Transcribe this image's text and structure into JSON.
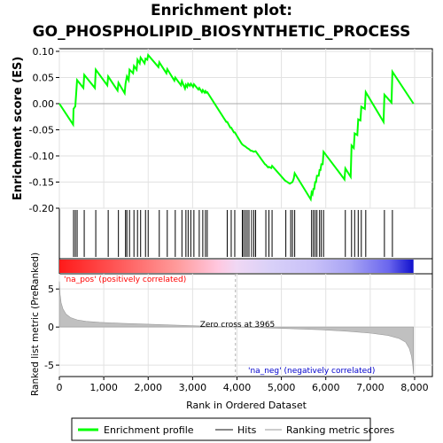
{
  "chart_data": {
    "type": "line",
    "title_line1": "Enrichment plot:",
    "title_line2": "GO_PHOSPHOLIPID_BIOSYNTHETIC_PROCESS",
    "ylabel_top": "Enrichment score (ES)",
    "ylabel_bottom": "Ranked list metric (PreRanked)",
    "xlabel": "Rank in Ordered Dataset",
    "es_yticks": [
      "0.10",
      "0.05",
      "0.00",
      "-0.05",
      "-0.10",
      "-0.15",
      "-0.20"
    ],
    "es_ytick_values": [
      0.1,
      0.05,
      0.0,
      -0.05,
      -0.1,
      -0.15,
      -0.2
    ],
    "es_ylim": [
      -0.2,
      0.105
    ],
    "metric_yticks": [
      "5",
      "0",
      "-5"
    ],
    "metric_ytick_values": [
      5,
      0,
      -5
    ],
    "metric_ylim": [
      -6.5,
      7
    ],
    "xticks": [
      "0",
      "1,000",
      "2,000",
      "3,000",
      "4,000",
      "5,000",
      "6,000",
      "7,000",
      "8,000"
    ],
    "xtick_values": [
      0,
      1000,
      2000,
      3000,
      4000,
      5000,
      6000,
      7000,
      8000
    ],
    "xlim": [
      0,
      8400
    ],
    "n_genes": 7975,
    "zero_cross_label": "Zero cross at 3965",
    "zero_cross": 3965,
    "pos_label": "'na_pos' (positively correlated)",
    "neg_label": "'na_neg' (negatively correlated)",
    "legend": {
      "enrichment": "Enrichment profile",
      "hits": "Hits",
      "ranking": "Ranking metric scores"
    },
    "colors": {
      "es_line": "#00ff00",
      "hits": "#000000",
      "metric_fill": "#c0c0c0",
      "zero_line": "#b0b0b0",
      "pos_text": "#ff0000",
      "neg_text": "#0000cc"
    },
    "hits": [
      320,
      360,
      400,
      560,
      820,
      1100,
      1330,
      1490,
      1520,
      1580,
      1680,
      1760,
      1830,
      1940,
      2000,
      2250,
      2430,
      2610,
      2760,
      2850,
      2900,
      2960,
      3030,
      3150,
      3230,
      3290,
      3330,
      3780,
      3870,
      3950,
      4120,
      4150,
      4190,
      4230,
      4270,
      4330,
      4380,
      4420,
      4650,
      4720,
      4790,
      5100,
      5210,
      5250,
      5300,
      5680,
      5720,
      5760,
      5800,
      5860,
      5900,
      5950,
      6440,
      6580,
      6650,
      6730,
      6800,
      6900,
      7320,
      7500
    ],
    "es_points": [
      [
        0,
        0.0
      ],
      [
        310,
        -0.04
      ],
      [
        320,
        -0.01
      ],
      [
        360,
        -0.005
      ],
      [
        400,
        0.045
      ],
      [
        540,
        0.03
      ],
      [
        560,
        0.055
      ],
      [
        800,
        0.03
      ],
      [
        820,
        0.065
      ],
      [
        1080,
        0.035
      ],
      [
        1100,
        0.052
      ],
      [
        1310,
        0.025
      ],
      [
        1330,
        0.04
      ],
      [
        1470,
        0.02
      ],
      [
        1490,
        0.038
      ],
      [
        1520,
        0.052
      ],
      [
        1560,
        0.045
      ],
      [
        1580,
        0.065
      ],
      [
        1660,
        0.058
      ],
      [
        1680,
        0.072
      ],
      [
        1740,
        0.065
      ],
      [
        1760,
        0.084
      ],
      [
        1810,
        0.077
      ],
      [
        1830,
        0.088
      ],
      [
        1920,
        0.077
      ],
      [
        1940,
        0.086
      ],
      [
        1980,
        0.084
      ],
      [
        2000,
        0.093
      ],
      [
        2230,
        0.07
      ],
      [
        2250,
        0.079
      ],
      [
        2410,
        0.058
      ],
      [
        2430,
        0.066
      ],
      [
        2590,
        0.044
      ],
      [
        2610,
        0.05
      ],
      [
        2740,
        0.035
      ],
      [
        2760,
        0.043
      ],
      [
        2830,
        0.029
      ],
      [
        2850,
        0.036
      ],
      [
        2880,
        0.032
      ],
      [
        2900,
        0.038
      ],
      [
        2940,
        0.034
      ],
      [
        2960,
        0.038
      ],
      [
        3010,
        0.032
      ],
      [
        3030,
        0.037
      ],
      [
        3130,
        0.027
      ],
      [
        3150,
        0.03
      ],
      [
        3210,
        0.022
      ],
      [
        3230,
        0.026
      ],
      [
        3270,
        0.021
      ],
      [
        3290,
        0.024
      ],
      [
        3310,
        0.021
      ],
      [
        3330,
        0.022
      ],
      [
        3760,
        -0.035
      ],
      [
        3780,
        -0.035
      ],
      [
        3850,
        -0.046
      ],
      [
        3870,
        -0.046
      ],
      [
        3930,
        -0.055
      ],
      [
        3950,
        -0.055
      ],
      [
        4100,
        -0.076
      ],
      [
        4120,
        -0.078
      ],
      [
        4150,
        -0.08
      ],
      [
        4190,
        -0.082
      ],
      [
        4230,
        -0.085
      ],
      [
        4270,
        -0.087
      ],
      [
        4310,
        -0.09
      ],
      [
        4330,
        -0.09
      ],
      [
        4380,
        -0.092
      ],
      [
        4420,
        -0.091
      ],
      [
        4630,
        -0.116
      ],
      [
        4650,
        -0.117
      ],
      [
        4700,
        -0.122
      ],
      [
        4720,
        -0.121
      ],
      [
        4770,
        -0.123
      ],
      [
        4790,
        -0.119
      ],
      [
        5080,
        -0.147
      ],
      [
        5100,
        -0.148
      ],
      [
        5190,
        -0.153
      ],
      [
        5210,
        -0.152
      ],
      [
        5250,
        -0.15
      ],
      [
        5280,
        -0.143
      ],
      [
        5300,
        -0.133
      ],
      [
        5660,
        -0.183
      ],
      [
        5680,
        -0.17
      ],
      [
        5700,
        -0.173
      ],
      [
        5720,
        -0.163
      ],
      [
        5740,
        -0.163
      ],
      [
        5760,
        -0.15
      ],
      [
        5780,
        -0.15
      ],
      [
        5800,
        -0.138
      ],
      [
        5840,
        -0.138
      ],
      [
        5860,
        -0.127
      ],
      [
        5880,
        -0.127
      ],
      [
        5900,
        -0.116
      ],
      [
        5930,
        -0.116
      ],
      [
        5950,
        -0.092
      ],
      [
        6420,
        -0.145
      ],
      [
        6440,
        -0.124
      ],
      [
        6560,
        -0.14
      ],
      [
        6580,
        -0.08
      ],
      [
        6630,
        -0.085
      ],
      [
        6650,
        -0.057
      ],
      [
        6710,
        -0.06
      ],
      [
        6730,
        -0.03
      ],
      [
        6780,
        -0.032
      ],
      [
        6800,
        -0.006
      ],
      [
        6880,
        -0.01
      ],
      [
        6900,
        0.022
      ],
      [
        7300,
        -0.035
      ],
      [
        7320,
        0.017
      ],
      [
        7480,
        0.002
      ],
      [
        7500,
        0.061
      ],
      [
        7975,
        0.0
      ]
    ],
    "metric_curve": [
      [
        0,
        6.0
      ],
      [
        15,
        4.3
      ],
      [
        40,
        3.2
      ],
      [
        80,
        2.4
      ],
      [
        150,
        1.7
      ],
      [
        250,
        1.25
      ],
      [
        400,
        0.95
      ],
      [
        600,
        0.75
      ],
      [
        900,
        0.62
      ],
      [
        1400,
        0.5
      ],
      [
        2000,
        0.38
      ],
      [
        2800,
        0.22
      ],
      [
        3500,
        0.08
      ],
      [
        3965,
        0.0
      ],
      [
        4500,
        -0.08
      ],
      [
        5200,
        -0.2
      ],
      [
        5900,
        -0.35
      ],
      [
        6500,
        -0.55
      ],
      [
        7000,
        -0.8
      ],
      [
        7400,
        -1.1
      ],
      [
        7650,
        -1.5
      ],
      [
        7800,
        -2.0
      ],
      [
        7880,
        -2.8
      ],
      [
        7930,
        -3.8
      ],
      [
        7960,
        -5.0
      ],
      [
        7975,
        -6.2
      ]
    ]
  }
}
